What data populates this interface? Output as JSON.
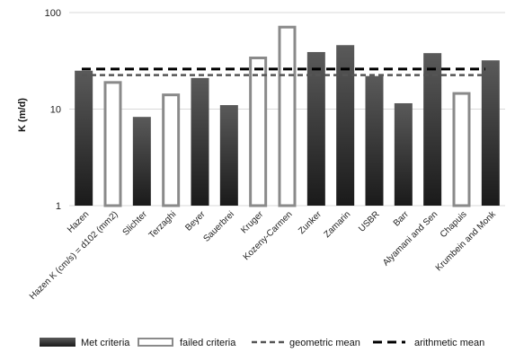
{
  "chart_data": {
    "type": "bar",
    "ylabel": "K (m/d)",
    "yscale": "log",
    "ylim": [
      1,
      100
    ],
    "yticks": [
      "1",
      "10",
      "100"
    ],
    "grid": "horizontal major lines",
    "legend_position": "bottom",
    "categories": [
      "Hazen",
      "Hazen K (cm/s) = d102 (mm2)",
      "Slichter",
      "Terzaghi",
      "Beyer",
      "Sauerbrei",
      "Kruger",
      "Kozeny-Carmen",
      "Zunker",
      "Zamarin",
      "USBR",
      "Barr",
      "Alyamani and Sen",
      "Chapuis",
      "Krumbein and Monk"
    ],
    "values": [
      25,
      19.5,
      8.3,
      14.5,
      21,
      11,
      35,
      73,
      39,
      46,
      22,
      11.5,
      38,
      15,
      32
    ],
    "criteria": [
      "met",
      "failed",
      "met",
      "failed",
      "met",
      "met",
      "failed",
      "failed",
      "met",
      "met",
      "met",
      "met",
      "met",
      "failed",
      "met"
    ],
    "reference_lines": [
      {
        "name": "geometric mean",
        "value": 22.5,
        "style": "dashed-gray"
      },
      {
        "name": "arithmetic mean",
        "value": 26,
        "style": "dashed-black"
      }
    ],
    "legend": [
      {
        "label": "Met criteria",
        "kind": "filled-bar",
        "color": "#333333"
      },
      {
        "label": "failed criteria",
        "kind": "outline-bar",
        "color": "#8a8a8a"
      },
      {
        "label": "geometric mean",
        "kind": "dashed-line",
        "color": "#555555"
      },
      {
        "label": "arithmetic mean",
        "kind": "dashed-line",
        "color": "#000000"
      }
    ],
    "colors": {
      "met_top": "#5a5a5a",
      "met_bottom": "#1a1a1a",
      "failed_stroke": "#8a8a8a",
      "grid": "#d9d9d9"
    }
  }
}
